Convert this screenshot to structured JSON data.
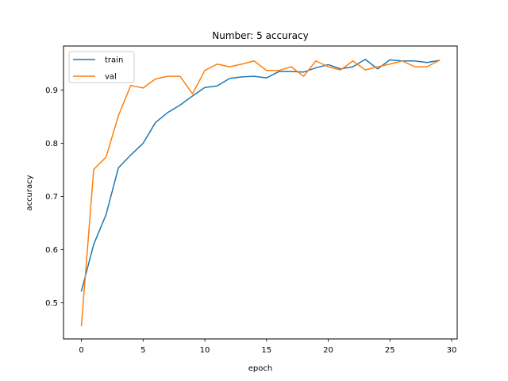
{
  "chart_data": {
    "type": "line",
    "title": "Number: 5 accuracy",
    "xlabel": "epoch",
    "ylabel": "accuracy",
    "xlim": [
      -1.45,
      30.45
    ],
    "ylim": [
      0.432,
      0.983
    ],
    "xticks": [
      0,
      5,
      10,
      15,
      20,
      25,
      30
    ],
    "xtick_labels": [
      "0",
      "5",
      "10",
      "15",
      "20",
      "25",
      "30"
    ],
    "yticks": [
      0.5,
      0.6,
      0.7,
      0.8,
      0.9
    ],
    "ytick_labels": [
      "0.5",
      "0.6",
      "0.7",
      "0.8",
      "0.9"
    ],
    "grid": false,
    "legend_position": "top-left",
    "x": [
      0,
      1,
      2,
      3,
      4,
      5,
      6,
      7,
      8,
      9,
      10,
      11,
      12,
      13,
      14,
      15,
      16,
      17,
      18,
      19,
      20,
      21,
      22,
      23,
      24,
      25,
      26,
      27,
      28,
      29
    ],
    "series": [
      {
        "name": "train",
        "color": "#1f77b4",
        "values": [
          0.522,
          0.61,
          0.666,
          0.754,
          0.778,
          0.8,
          0.839,
          0.858,
          0.872,
          0.889,
          0.905,
          0.908,
          0.922,
          0.925,
          0.926,
          0.923,
          0.935,
          0.935,
          0.934,
          0.942,
          0.948,
          0.94,
          0.944,
          0.958,
          0.94,
          0.957,
          0.955,
          0.955,
          0.952,
          0.956
        ]
      },
      {
        "name": "val",
        "color": "#ff7f0e",
        "values": [
          0.457,
          0.751,
          0.774,
          0.852,
          0.909,
          0.904,
          0.921,
          0.926,
          0.926,
          0.893,
          0.937,
          0.949,
          0.944,
          0.949,
          0.955,
          0.937,
          0.937,
          0.944,
          0.926,
          0.955,
          0.944,
          0.938,
          0.955,
          0.938,
          0.944,
          0.949,
          0.955,
          0.944,
          0.944,
          0.956
        ]
      }
    ]
  }
}
